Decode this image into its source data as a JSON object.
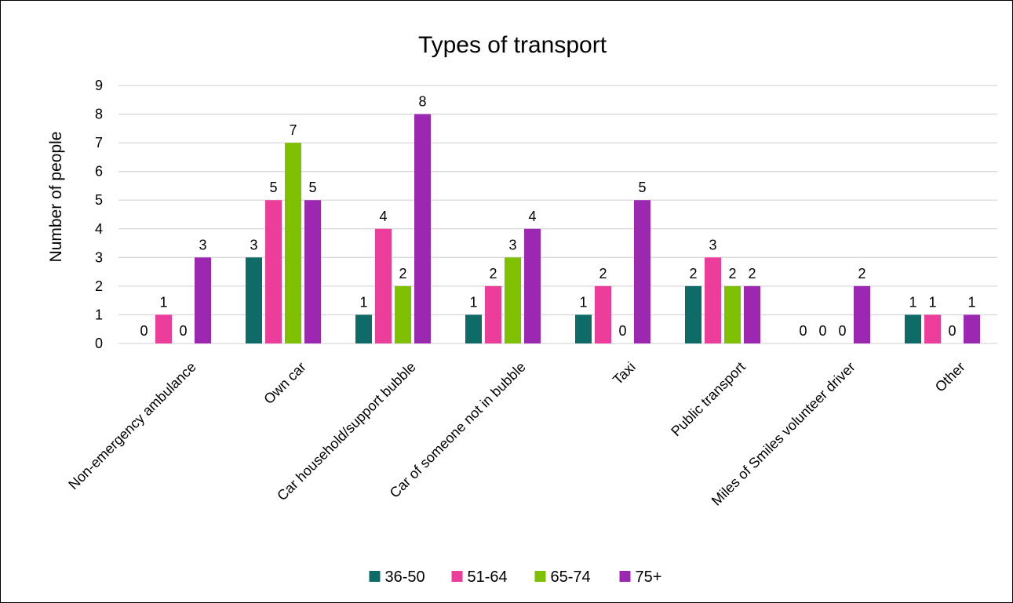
{
  "chart_data": {
    "type": "bar",
    "title": "Types of transport",
    "xlabel": "",
    "ylabel": "Number of people",
    "ylim": [
      0,
      9
    ],
    "yticks": [
      0,
      1,
      2,
      3,
      4,
      5,
      6,
      7,
      8,
      9
    ],
    "grid": "horizontal",
    "legend_position": "bottom",
    "categories": [
      "Non-emergency ambulance",
      "Own car",
      "Car household/support bubble",
      "Car of someone not in bubble",
      "Taxi",
      "Public transport",
      "Miles of Smiles volunteer driver",
      "Other"
    ],
    "series": [
      {
        "name": "36-50",
        "color": "#0f6b67",
        "values": [
          0,
          3,
          1,
          1,
          1,
          2,
          0,
          1
        ]
      },
      {
        "name": "51-64",
        "color": "#ec3d9b",
        "values": [
          1,
          5,
          4,
          2,
          2,
          3,
          0,
          1
        ]
      },
      {
        "name": "65-74",
        "color": "#7fc000",
        "values": [
          0,
          7,
          2,
          3,
          0,
          2,
          0,
          0
        ]
      },
      {
        "name": "75+",
        "color": "#9c27b0",
        "values": [
          3,
          5,
          8,
          4,
          5,
          2,
          2,
          1
        ]
      }
    ],
    "gridline_color": "#d9d9d9"
  }
}
